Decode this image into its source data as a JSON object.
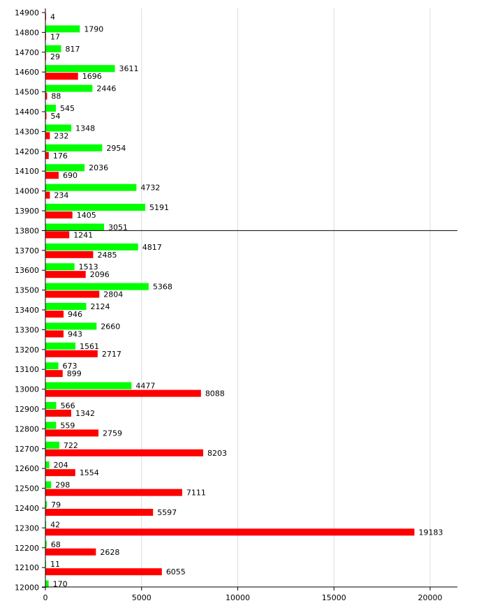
{
  "chart_data": {
    "type": "bar",
    "orientation": "horizontal",
    "categories": [
      "14900",
      "14800",
      "14700",
      "14600",
      "14500",
      "14400",
      "14300",
      "14200",
      "14100",
      "14000",
      "13900",
      "13800",
      "13700",
      "13600",
      "13500",
      "13400",
      "13300",
      "13200",
      "13100",
      "13000",
      "12900",
      "12800",
      "12700",
      "12600",
      "12500",
      "12400",
      "12300",
      "12200",
      "12100",
      "12000"
    ],
    "series": [
      {
        "color": "#00ff00",
        "values": [
          null,
          1790,
          817,
          3611,
          2446,
          545,
          1348,
          2954,
          2036,
          4732,
          5191,
          3051,
          4817,
          1513,
          5368,
          2124,
          2660,
          1561,
          673,
          4477,
          566,
          559,
          722,
          204,
          298,
          79,
          42,
          68,
          11,
          170
        ]
      },
      {
        "color": "#ff0000",
        "values": [
          4,
          17,
          29,
          1696,
          88,
          54,
          232,
          176,
          690,
          234,
          1405,
          1241,
          2485,
          2096,
          2804,
          946,
          943,
          2717,
          899,
          8088,
          1342,
          2759,
          8203,
          1554,
          7111,
          5597,
          19183,
          2628,
          6055,
          null
        ]
      }
    ],
    "x_ticks": [
      "0",
      "5000",
      "10000",
      "15000",
      "20000"
    ],
    "x_tick_values": [
      0,
      5000,
      10000,
      15000,
      20000
    ],
    "xlim": [
      0,
      21500
    ],
    "reference_line_at": "13800",
    "grid": "vertical",
    "legend": "none",
    "title": "",
    "xlabel": "",
    "ylabel": ""
  }
}
